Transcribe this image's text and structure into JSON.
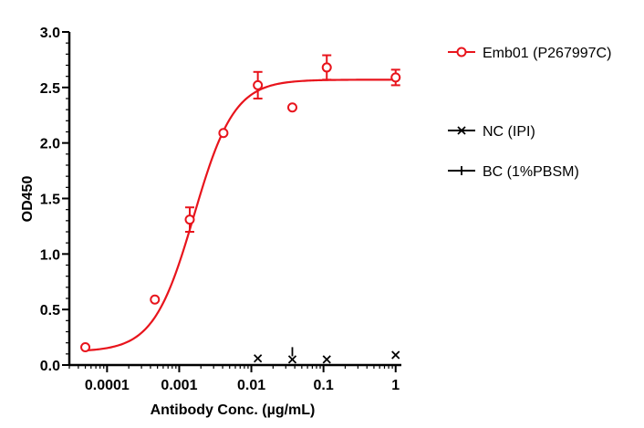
{
  "chart_data": {
    "type": "scatter",
    "title": "",
    "xlabel": "Antibody Conc. (µg/mL)",
    "ylabel": "OD450",
    "xscale": "log",
    "xlim": [
      3e-05,
      1.2
    ],
    "ylim": [
      0,
      3.0
    ],
    "x_ticks": [
      0.0001,
      0.001,
      0.01,
      0.1,
      1
    ],
    "x_tick_labels": [
      "0.0001",
      "0.001",
      "0.01",
      "0.1",
      "1"
    ],
    "y_ticks": [
      0,
      0.5,
      1.0,
      1.5,
      2.0,
      2.5,
      3.0
    ],
    "y_tick_labels": [
      "0.0",
      "0.5",
      "1.0",
      "1.5",
      "2.0",
      "2.5",
      "3.0"
    ],
    "grid": false,
    "legend_position": "right",
    "series": [
      {
        "name": "Emb01 (P267997C)",
        "color": "#e8141c",
        "marker": "open-circle",
        "fit": "4PL",
        "x": [
          5e-05,
          0.00046,
          0.0014,
          0.0041,
          0.0123,
          0.037,
          0.111,
          1.0
        ],
        "y": [
          0.16,
          0.59,
          1.31,
          2.09,
          2.52,
          2.32,
          2.68,
          2.59
        ],
        "error": [
          0.0,
          0.0,
          0.11,
          0.0,
          0.12,
          0.0,
          0.11,
          0.07
        ]
      },
      {
        "name": "NC (IPI)",
        "color": "#000000",
        "marker": "x",
        "x": [
          0.0123,
          0.037,
          0.111,
          1.0
        ],
        "y": [
          0.06,
          0.05,
          0.05,
          0.09
        ],
        "error": [
          0,
          0,
          0,
          0
        ]
      },
      {
        "name": "BC (1%PBSM)",
        "color": "#000000",
        "marker": "plus",
        "x": [
          0.037
        ],
        "y": [
          0.12
        ],
        "error": [
          0
        ]
      }
    ],
    "fit_params": {
      "bottom": 0.12,
      "top": 2.57,
      "ec50": 0.0016,
      "hill": 1.55
    }
  }
}
